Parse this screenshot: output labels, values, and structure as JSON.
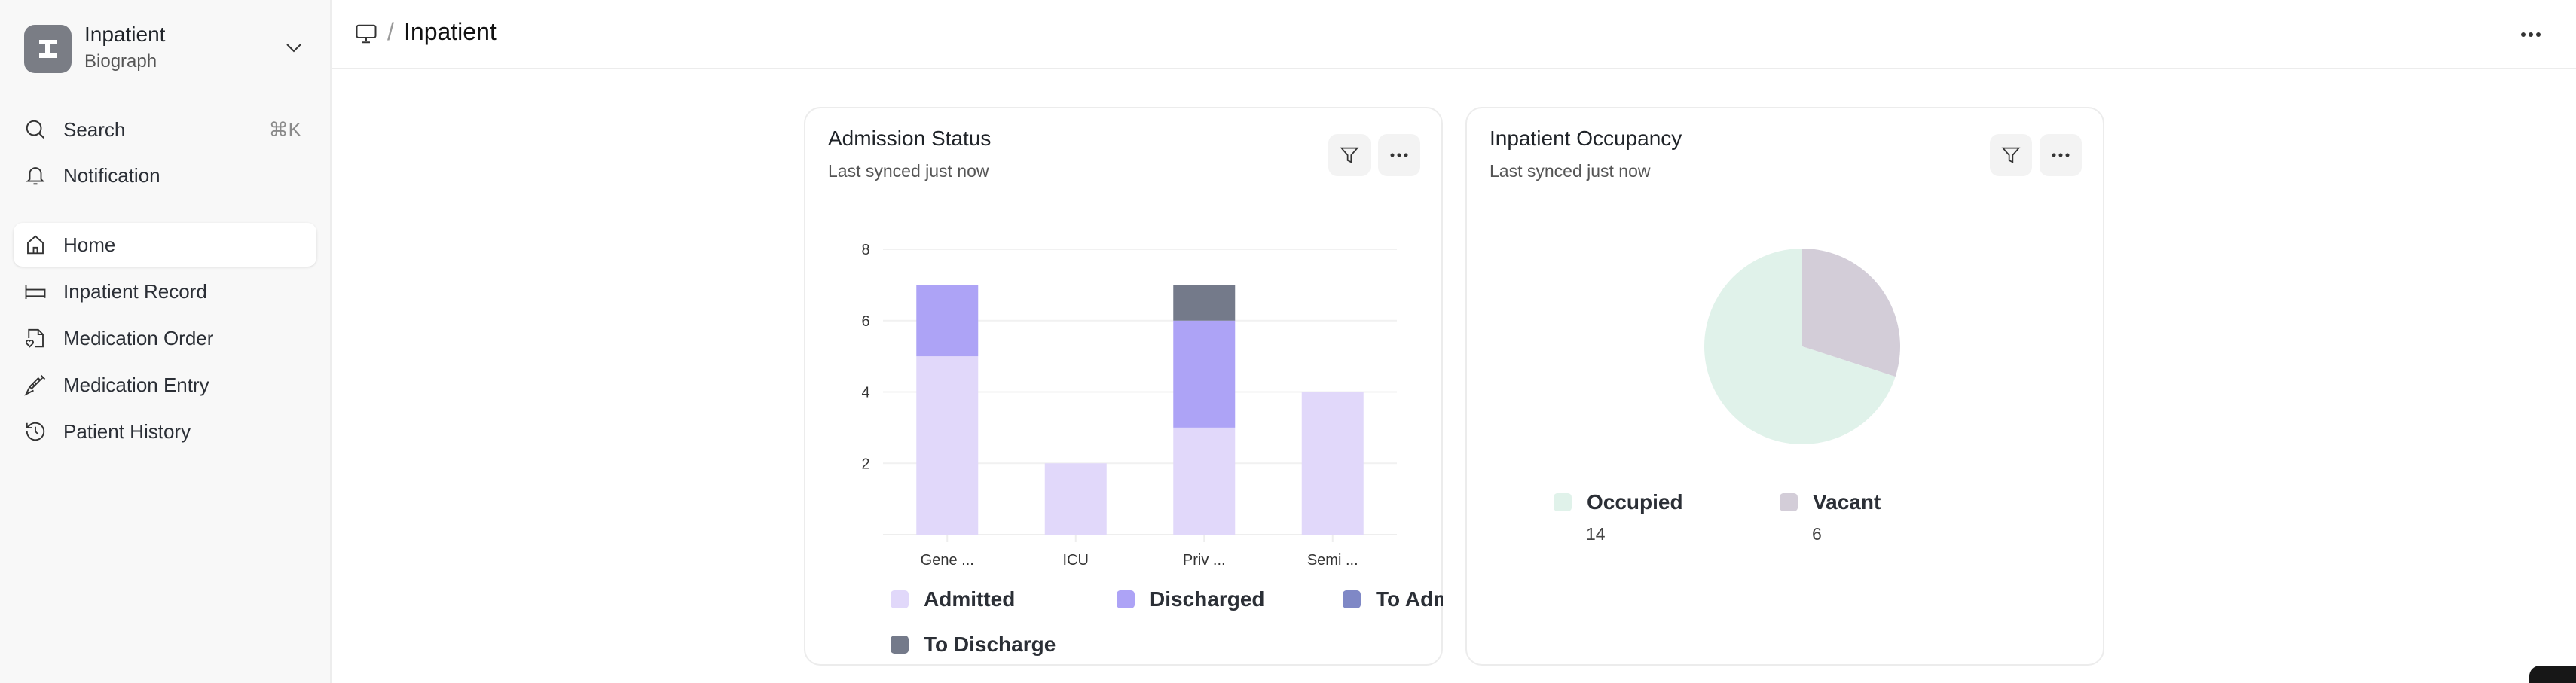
{
  "sidebar": {
    "app_name": "Inpatient",
    "org_name": "Biograph",
    "search_label": "Search",
    "search_shortcut": "⌘K",
    "notification_label": "Notification",
    "items": [
      {
        "label": "Home",
        "icon": "home-icon",
        "active": true
      },
      {
        "label": "Inpatient Record",
        "icon": "bed-icon"
      },
      {
        "label": "Medication Order",
        "icon": "file-heart-icon"
      },
      {
        "label": "Medication Entry",
        "icon": "syringe-icon"
      },
      {
        "label": "Patient History",
        "icon": "history-icon"
      }
    ]
  },
  "header": {
    "breadcrumb_icon": "monitor-icon",
    "separator": "/",
    "title": "Inpatient"
  },
  "cards": [
    {
      "title": "Admission Status",
      "subtitle": "Last synced just now"
    },
    {
      "title": "Inpatient Occupancy",
      "subtitle": "Last synced just now"
    }
  ],
  "chart_data": [
    {
      "type": "bar",
      "stacked": true,
      "categories": [
        "Gene ...",
        "ICU",
        "Priv ...",
        "Semi ..."
      ],
      "yticks": [
        "2",
        "4",
        "6",
        "8"
      ],
      "ylim": [
        0,
        8
      ],
      "grid": true,
      "legend": "bottom",
      "series": [
        {
          "name": "Admitted",
          "color": "#E1D8FA",
          "values": [
            5,
            2,
            3,
            4
          ]
        },
        {
          "name": "Discharged",
          "color": "#ADA3F6",
          "values": [
            2,
            0,
            3,
            0
          ]
        },
        {
          "name": "To Admit",
          "display": "To Adı",
          "color": "#7F88C6",
          "values": [
            0,
            0,
            0,
            0
          ]
        },
        {
          "name": "To Discharge",
          "color": "#747A8A",
          "values": [
            0,
            0,
            1,
            0
          ]
        }
      ]
    },
    {
      "type": "pie",
      "legend": "bottom",
      "slices": [
        {
          "label": "Occupied",
          "value": 14,
          "display": "14",
          "color": "#E0F2EA"
        },
        {
          "label": "Vacant",
          "value": 6,
          "display": "6",
          "color": "#D3CDD8"
        }
      ]
    }
  ]
}
